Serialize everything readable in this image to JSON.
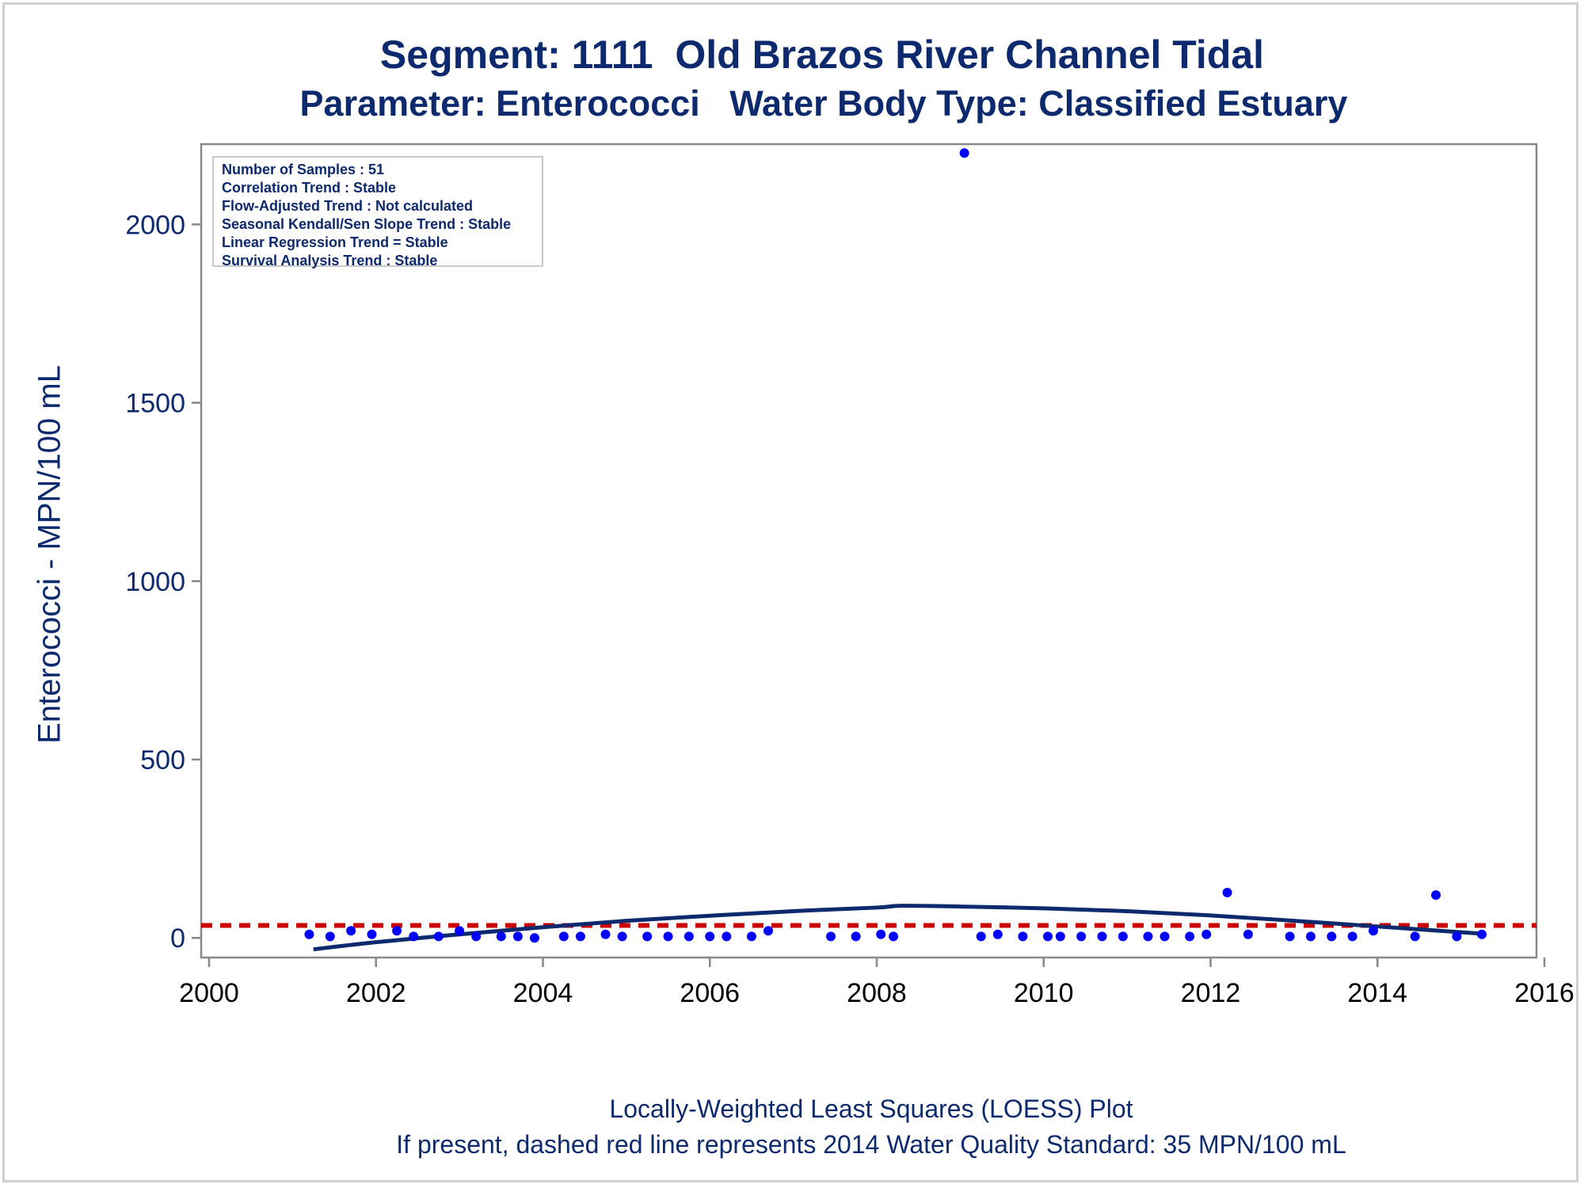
{
  "chart_data": {
    "type": "scatter",
    "title": "Segment: 1111  Old Brazos River Channel Tidal",
    "subtitle": "Parameter: Enterococci   Water Body Type: Classified Estuary",
    "ylabel": "Enterococci - MPN/100 mL",
    "xlabel": "",
    "footnotes": [
      "Locally-Weighted Least Squares (LOESS) Plot",
      "If present, dashed red line represents 2014 Water Quality Standard: 35 MPN/100 mL"
    ],
    "stats": [
      "Number of Samples : 51",
      "Correlation Trend : Stable",
      "Flow-Adjusted Trend : Not calculated",
      "Seasonal Kendall/Sen Slope Trend : Stable",
      "Linear Regression Trend = Stable",
      "Survival Analysis Trend : Stable"
    ],
    "xlim": [
      2000,
      2016
    ],
    "ylim": [
      -55,
      2225
    ],
    "xticks": [
      "2000",
      "2002",
      "2004",
      "2006",
      "2008",
      "2010",
      "2012",
      "2014",
      "2016"
    ],
    "yticks": [
      "0",
      "500",
      "1000",
      "1500",
      "2000"
    ],
    "standard_line": {
      "value": 35,
      "color": "#cc0000"
    },
    "colors": {
      "points": "#0000ff",
      "loess": "#0d2a6e",
      "axis": "#888888",
      "text": "#0d2a6e"
    },
    "points": [
      {
        "x": 2001.2,
        "y": 10
      },
      {
        "x": 2001.45,
        "y": 4
      },
      {
        "x": 2001.7,
        "y": 20
      },
      {
        "x": 2001.95,
        "y": 10
      },
      {
        "x": 2002.25,
        "y": 20
      },
      {
        "x": 2002.45,
        "y": 4
      },
      {
        "x": 2002.75,
        "y": 4
      },
      {
        "x": 2003.0,
        "y": 20
      },
      {
        "x": 2003.2,
        "y": 4
      },
      {
        "x": 2003.5,
        "y": 4
      },
      {
        "x": 2003.7,
        "y": 4
      },
      {
        "x": 2003.9,
        "y": 0
      },
      {
        "x": 2004.25,
        "y": 4
      },
      {
        "x": 2004.45,
        "y": 4
      },
      {
        "x": 2004.75,
        "y": 10
      },
      {
        "x": 2004.95,
        "y": 4
      },
      {
        "x": 2005.25,
        "y": 4
      },
      {
        "x": 2005.5,
        "y": 4
      },
      {
        "x": 2005.75,
        "y": 4
      },
      {
        "x": 2006.0,
        "y": 4
      },
      {
        "x": 2006.2,
        "y": 4
      },
      {
        "x": 2006.5,
        "y": 4
      },
      {
        "x": 2006.7,
        "y": 20
      },
      {
        "x": 2007.45,
        "y": 4
      },
      {
        "x": 2007.75,
        "y": 4
      },
      {
        "x": 2008.05,
        "y": 10
      },
      {
        "x": 2008.2,
        "y": 4
      },
      {
        "x": 2009.05,
        "y": 2200
      },
      {
        "x": 2009.25,
        "y": 4
      },
      {
        "x": 2009.45,
        "y": 10
      },
      {
        "x": 2009.75,
        "y": 4
      },
      {
        "x": 2010.05,
        "y": 4
      },
      {
        "x": 2010.2,
        "y": 4
      },
      {
        "x": 2010.45,
        "y": 4
      },
      {
        "x": 2010.7,
        "y": 4
      },
      {
        "x": 2010.95,
        "y": 4
      },
      {
        "x": 2011.25,
        "y": 4
      },
      {
        "x": 2011.45,
        "y": 4
      },
      {
        "x": 2011.75,
        "y": 4
      },
      {
        "x": 2011.95,
        "y": 10
      },
      {
        "x": 2012.2,
        "y": 127
      },
      {
        "x": 2012.45,
        "y": 10
      },
      {
        "x": 2012.95,
        "y": 4
      },
      {
        "x": 2013.2,
        "y": 4
      },
      {
        "x": 2013.45,
        "y": 4
      },
      {
        "x": 2013.7,
        "y": 4
      },
      {
        "x": 2013.95,
        "y": 20
      },
      {
        "x": 2014.45,
        "y": 4
      },
      {
        "x": 2014.7,
        "y": 120
      },
      {
        "x": 2014.95,
        "y": 4
      },
      {
        "x": 2015.25,
        "y": 10
      }
    ],
    "loess": [
      {
        "x": 2001.25,
        "y": -32
      },
      {
        "x": 2002.0,
        "y": -12
      },
      {
        "x": 2003.0,
        "y": 10
      },
      {
        "x": 2004.0,
        "y": 30
      },
      {
        "x": 2005.0,
        "y": 48
      },
      {
        "x": 2006.0,
        "y": 62
      },
      {
        "x": 2007.0,
        "y": 75
      },
      {
        "x": 2008.0,
        "y": 85
      },
      {
        "x": 2008.3,
        "y": 90
      },
      {
        "x": 2009.0,
        "y": 88
      },
      {
        "x": 2010.0,
        "y": 83
      },
      {
        "x": 2011.0,
        "y": 75
      },
      {
        "x": 2012.0,
        "y": 63
      },
      {
        "x": 2013.0,
        "y": 48
      },
      {
        "x": 2014.0,
        "y": 32
      },
      {
        "x": 2015.25,
        "y": 12
      }
    ]
  }
}
